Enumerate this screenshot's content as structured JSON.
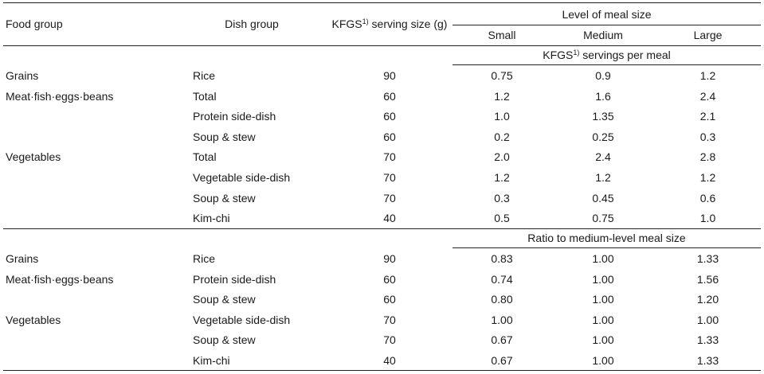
{
  "header": {
    "food_group": "Food group",
    "dish_group": "Dish group",
    "kfgs_prefix": "KFGS",
    "kfgs_sup": "1)",
    "kfgs_suffix": " serving size (g)",
    "level_title": "Level of meal size",
    "levels": [
      "Small",
      "Medium",
      "Large"
    ]
  },
  "section1": {
    "subtitle_prefix": "KFGS",
    "subtitle_sup": "1)",
    "subtitle_suffix": " servings per meal",
    "rows": [
      {
        "food": "Grains",
        "dish": "Rice",
        "size": "90",
        "small": "0.75",
        "medium": "0.9",
        "large": "1.2"
      },
      {
        "food": "Meat·fish·eggs·beans",
        "dish": "Total",
        "size": "60",
        "small": "1.2",
        "medium": "1.6",
        "large": "2.4"
      },
      {
        "food": "",
        "dish": "Protein side-dish",
        "size": "60",
        "small": "1.0",
        "medium": "1.35",
        "large": "2.1"
      },
      {
        "food": "",
        "dish": "Soup & stew",
        "size": "60",
        "small": "0.2",
        "medium": "0.25",
        "large": "0.3"
      },
      {
        "food": "Vegetables",
        "dish": "Total",
        "size": "70",
        "small": "2.0",
        "medium": "2.4",
        "large": "2.8"
      },
      {
        "food": "",
        "dish": "Vegetable side-dish",
        "size": "70",
        "small": "1.2",
        "medium": "1.2",
        "large": "1.2"
      },
      {
        "food": "",
        "dish": "Soup & stew",
        "size": "70",
        "small": "0.3",
        "medium": "0.45",
        "large": "0.6"
      },
      {
        "food": "",
        "dish": "Kim-chi",
        "size": "40",
        "small": "0.5",
        "medium": "0.75",
        "large": "1.0"
      }
    ]
  },
  "section2": {
    "subtitle": "Ratio to medium-level meal size",
    "rows": [
      {
        "food": "Grains",
        "dish": "Rice",
        "size": "90",
        "small": "0.83",
        "medium": "1.00",
        "large": "1.33"
      },
      {
        "food": "Meat·fish·eggs·beans",
        "dish": "Protein side-dish",
        "size": "60",
        "small": "0.74",
        "medium": "1.00",
        "large": "1.56"
      },
      {
        "food": "",
        "dish": "Soup & stew",
        "size": "60",
        "small": "0.80",
        "medium": "1.00",
        "large": "1.20"
      },
      {
        "food": "Vegetables",
        "dish": "Vegetable side-dish",
        "size": "70",
        "small": "1.00",
        "medium": "1.00",
        "large": "1.00"
      },
      {
        "food": "",
        "dish": "Soup & stew",
        "size": "70",
        "small": "0.67",
        "medium": "1.00",
        "large": "1.33"
      },
      {
        "food": "",
        "dish": "Kim-chi",
        "size": "40",
        "small": "0.67",
        "medium": "1.00",
        "large": "1.33"
      }
    ]
  }
}
